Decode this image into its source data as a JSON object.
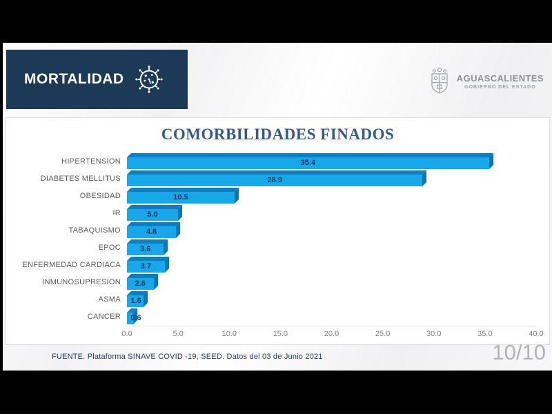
{
  "header": {
    "title": "MORTALIDAD",
    "icon": "virus-icon",
    "background": "#1C3A57"
  },
  "logo": {
    "icon": "coat-of-arms-icon",
    "name": "AGUASCALIENTES",
    "subtitle": "GOBIERNO DEL ESTADO"
  },
  "chart_data": {
    "type": "bar",
    "orientation": "horizontal",
    "title": "COMORBILIDADES FINADOS",
    "categories": [
      "HIPERTENSION",
      "DIABETES MELLITUS",
      "OBESIDAD",
      "IR",
      "TABAQUISMO",
      "EPOC",
      "ENFERMEDAD CARDIACA",
      "INMUNOSUPRESION",
      "ASMA",
      "CANCER"
    ],
    "values": [
      35.4,
      28.9,
      10.5,
      5.0,
      4.8,
      3.6,
      3.7,
      2.6,
      1.6,
      0.6
    ],
    "value_labels": [
      "35.4",
      "28.9",
      "10.5",
      "5.0",
      "4.8",
      "3.6",
      "3.7",
      "2.6",
      "1.6",
      "0.6"
    ],
    "xlim": [
      0,
      40
    ],
    "xticks": [
      "0.0",
      "5.0",
      "10.0",
      "15.0",
      "20.0",
      "25.0",
      "30.0",
      "35.0",
      "40.0"
    ],
    "grid": false,
    "legend": false,
    "colors": {
      "bar": "#18A7E8",
      "bar_top": "#0D7FC0",
      "bar_side": "#0C74B2",
      "value_label": "#17375E",
      "title": "#35598F"
    }
  },
  "footer": {
    "source": "FUENTE. Plataforma SINAVE COVID -19, SEED. Datos del 03 de Junio 2021"
  },
  "page": {
    "indicator": "10/10"
  }
}
